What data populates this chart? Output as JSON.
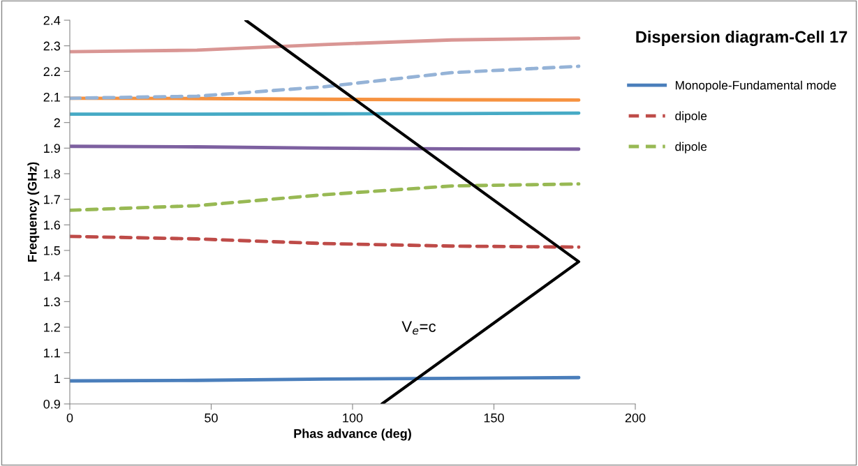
{
  "chart_data": {
    "type": "line",
    "title": "Dispersion diagram-Cell 17",
    "xlabel": "Phas advance (deg)",
    "ylabel": "Frequency (GHz)",
    "xlim": [
      0,
      200
    ],
    "xticks": [
      0,
      50,
      100,
      150,
      200
    ],
    "ylim": [
      0.9,
      2.4
    ],
    "yticks": [
      0.9,
      1,
      1.1,
      1.2,
      1.3,
      1.4,
      1.5,
      1.6,
      1.7,
      1.8,
      1.9,
      2,
      2.1,
      2.2,
      2.3,
      2.4
    ],
    "grid": false,
    "legend": "right",
    "marker": "none",
    "series": [
      {
        "name": "Monopole-Fundamental mode",
        "color": "#4a7ebb",
        "line_style": "solid",
        "x": [
          0,
          45,
          90,
          135,
          180
        ],
        "values": [
          0.99,
          0.992,
          0.997,
          1.0,
          1.003
        ]
      },
      {
        "name": "dipole",
        "color": "#be4b48",
        "line_style": "dashed",
        "x": [
          0,
          45,
          90,
          135,
          180
        ],
        "values": [
          1.555,
          1.545,
          1.527,
          1.517,
          1.513
        ]
      },
      {
        "name": "dipole",
        "color": "#98b954",
        "line_style": "dashed",
        "x": [
          0,
          45,
          90,
          135,
          180
        ],
        "values": [
          1.657,
          1.675,
          1.718,
          1.752,
          1.76
        ]
      },
      {
        "color": "#7d60a0",
        "line_style": "solid",
        "x": [
          0,
          45,
          90,
          135,
          180
        ],
        "values": [
          1.907,
          1.905,
          1.9,
          1.897,
          1.896
        ]
      },
      {
        "color": "#46aac5",
        "line_style": "solid",
        "x": [
          0,
          45,
          90,
          135,
          180
        ],
        "values": [
          2.033,
          2.033,
          2.034,
          2.035,
          2.037
        ]
      },
      {
        "color": "#f69240",
        "line_style": "solid",
        "x": [
          0,
          45,
          90,
          135,
          180
        ],
        "values": [
          2.095,
          2.094,
          2.091,
          2.089,
          2.088
        ]
      },
      {
        "color": "#95b3d7",
        "line_style": "dashed",
        "x": [
          0,
          45,
          90,
          135,
          180
        ],
        "values": [
          2.095,
          2.103,
          2.14,
          2.195,
          2.22
        ]
      },
      {
        "color": "#d99694",
        "line_style": "solid",
        "x": [
          0,
          45,
          90,
          135,
          180
        ],
        "values": [
          2.277,
          2.283,
          2.305,
          2.323,
          2.33
        ]
      },
      {
        "color": "#000000",
        "line_style": "solid",
        "x": [
          62.2,
          180,
          110.4
        ],
        "values": [
          2.4,
          1.456,
          0.9
        ]
      }
    ],
    "annotations": [
      "V$_{e}$=c"
    ]
  }
}
